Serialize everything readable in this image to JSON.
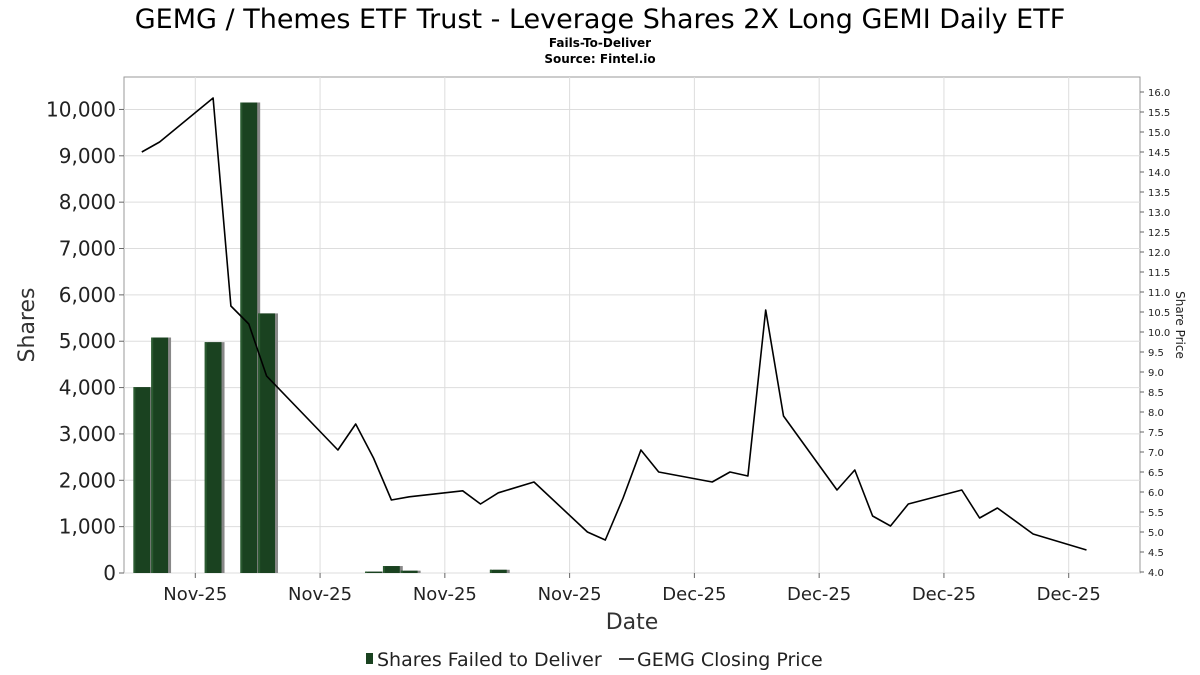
{
  "chart_data": {
    "type": "bar",
    "title": "GEMG / Themes ETF Trust - Leverage Shares 2X Long GEMI Daily ETF",
    "subtitles": [
      "Fails-To-Deliver",
      "Source: Fintel.io"
    ],
    "xlabel": "Date",
    "ylabel": "Shares",
    "y2label": "Share Price",
    "ylim": [
      0,
      10700
    ],
    "y2lim": [
      4.0,
      16.0
    ],
    "yticks": [
      "0",
      "1,000",
      "2,000",
      "3,000",
      "4,000",
      "5,000",
      "6,000",
      "7,000",
      "8,000",
      "9,000",
      "10,000"
    ],
    "y2ticks": [
      "4.0",
      "4.5",
      "5.0",
      "5.5",
      "6.0",
      "6.5",
      "7.0",
      "7.5",
      "8.0",
      "8.5",
      "9.0",
      "9.5",
      "10.0",
      "10.5",
      "11.0",
      "11.5",
      "12.0",
      "12.5",
      "13.0",
      "13.5",
      "14.0",
      "14.5",
      "15.0",
      "15.5",
      "16.0"
    ],
    "xticks": [
      "Nov-25",
      "Nov-25",
      "Nov-25",
      "Nov-25",
      "Dec-25",
      "Dec-25",
      "Dec-25",
      "Dec-25"
    ],
    "grid": true,
    "legend_position": "bottom-center",
    "series": [
      {
        "name": "Shares Failed to Deliver",
        "type": "bar",
        "color": "#1a4220",
        "points": [
          {
            "x": 1,
            "y": 4010
          },
          {
            "x": 2,
            "y": 5080
          },
          {
            "x": 5,
            "y": 4980
          },
          {
            "x": 7,
            "y": 10150
          },
          {
            "x": 8,
            "y": 5600
          },
          {
            "x": 14,
            "y": 30
          },
          {
            "x": 15,
            "y": 150
          },
          {
            "x": 16,
            "y": 50
          },
          {
            "x": 21,
            "y": 70
          }
        ]
      },
      {
        "name": "GEMG Closing Price",
        "type": "line",
        "color": "#000000",
        "points": [
          {
            "x": 1,
            "y": 14.5
          },
          {
            "x": 2,
            "y": 14.75
          },
          {
            "x": 5,
            "y": 15.85
          },
          {
            "x": 6,
            "y": 10.65
          },
          {
            "x": 7,
            "y": 10.2
          },
          {
            "x": 8,
            "y": 8.9
          },
          {
            "x": 12,
            "y": 7.05
          },
          {
            "x": 13,
            "y": 7.7
          },
          {
            "x": 14,
            "y": 6.85
          },
          {
            "x": 15,
            "y": 5.8
          },
          {
            "x": 16,
            "y": 5.88
          },
          {
            "x": 19,
            "y": 6.03
          },
          {
            "x": 20,
            "y": 5.7
          },
          {
            "x": 21,
            "y": 5.98
          },
          {
            "x": 23,
            "y": 6.25
          },
          {
            "x": 26,
            "y": 5.0
          },
          {
            "x": 27,
            "y": 4.8
          },
          {
            "x": 28,
            "y": 5.85
          },
          {
            "x": 29,
            "y": 7.05
          },
          {
            "x": 30,
            "y": 6.5
          },
          {
            "x": 33,
            "y": 6.25
          },
          {
            "x": 34,
            "y": 6.5
          },
          {
            "x": 35,
            "y": 6.4
          },
          {
            "x": 36,
            "y": 10.55
          },
          {
            "x": 37,
            "y": 7.9
          },
          {
            "x": 40,
            "y": 6.05
          },
          {
            "x": 41,
            "y": 6.55
          },
          {
            "x": 42,
            "y": 5.4
          },
          {
            "x": 43,
            "y": 5.15
          },
          {
            "x": 44,
            "y": 5.7
          },
          {
            "x": 47,
            "y": 6.05
          },
          {
            "x": 48,
            "y": 5.35
          },
          {
            "x": 49,
            "y": 5.6
          },
          {
            "x": 51,
            "y": 4.95
          },
          {
            "x": 54,
            "y": 4.55
          }
        ]
      }
    ]
  },
  "legend": {
    "items": [
      {
        "label": "Shares Failed to Deliver",
        "color": "#1a4220"
      },
      {
        "label": "GEMG Closing Price",
        "color": "#000000"
      }
    ]
  }
}
